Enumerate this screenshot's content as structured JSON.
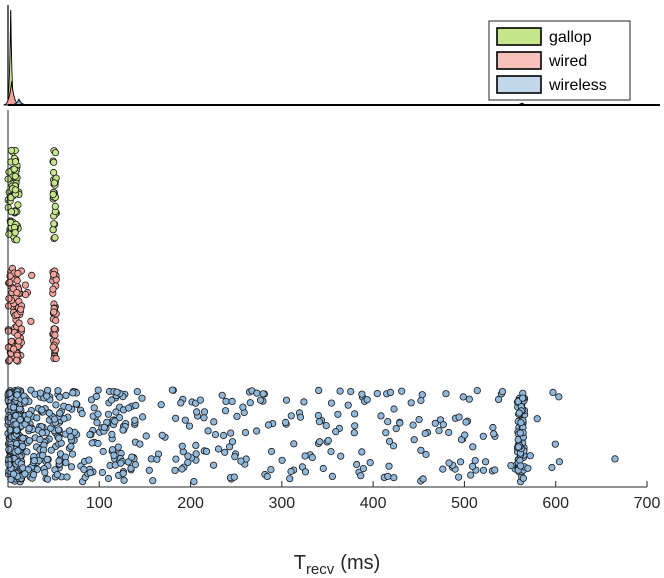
{
  "chart_data": {
    "type": "scatter",
    "x_label_main": "T",
    "x_label_sub": "recv",
    "x_label_unit": "(ms)",
    "xlim": [
      0,
      700
    ],
    "x_ticks": [
      "0",
      "100",
      "200",
      "300",
      "400",
      "500",
      "600",
      "700"
    ],
    "legend": {
      "placement": "top-right",
      "entries": [
        "gallop",
        "wired",
        "wireless"
      ]
    },
    "colors": {
      "gallop": "#c5e589",
      "wired": "#f4a39c",
      "wireless": "#8fb8dc",
      "gallop_legend": "#c6e68c",
      "wired_legend": "#f8c1bc",
      "wireless_legend": "#c3d7ea"
    },
    "density": {
      "peaks": [
        {
          "series": "gallop",
          "x": 3,
          "height": 1.0
        },
        {
          "series": "wired",
          "x": 4,
          "height": 0.25
        },
        {
          "series": "wireless",
          "x": 12,
          "height": 0.06
        },
        {
          "series": "wireless",
          "x": 563,
          "height": 0.02
        }
      ]
    },
    "series": [
      {
        "name": "gallop",
        "clusters": [
          {
            "x_min": 0,
            "x_max": 12,
            "count": 70
          },
          {
            "x_min": 49,
            "x_max": 53,
            "count": 30
          }
        ]
      },
      {
        "name": "wired",
        "clusters": [
          {
            "x_min": 0,
            "x_max": 15,
            "count": 80
          },
          {
            "x_min": 18,
            "x_max": 30,
            "count": 5
          },
          {
            "x_min": 49,
            "x_max": 53,
            "count": 40
          }
        ]
      },
      {
        "name": "wireless",
        "clusters": [
          {
            "x_min": 0,
            "x_max": 15,
            "count": 260
          },
          {
            "x_min": 15,
            "x_max": 60,
            "count": 130
          },
          {
            "x_min": 60,
            "x_max": 140,
            "count": 120
          },
          {
            "x_min": 140,
            "x_max": 520,
            "count": 190
          },
          {
            "x_min": 520,
            "x_max": 560,
            "count": 15
          },
          {
            "x_min": 558,
            "x_max": 566,
            "count": 80
          },
          {
            "x_min": 566,
            "x_max": 605,
            "count": 8
          }
        ],
        "extra_points": [
          665
        ]
      }
    ]
  }
}
